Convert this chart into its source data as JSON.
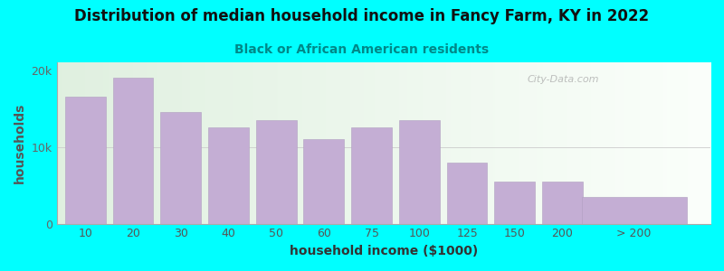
{
  "title": "Distribution of median household income in Fancy Farm, KY in 2022",
  "subtitle": "Black or African American residents",
  "xlabel": "household income ($1000)",
  "ylabel": "households",
  "background_outer": "#00FFFF",
  "bar_color": "#c4aed4",
  "bar_edge_color": "#b09fc0",
  "categories": [
    "10",
    "20",
    "30",
    "40",
    "50",
    "60",
    "75",
    "100",
    "125",
    "150",
    "200",
    "> 200"
  ],
  "values": [
    16500,
    19000,
    14500,
    12500,
    13500,
    11000,
    12500,
    13500,
    8000,
    5500,
    5500,
    3500
  ],
  "bar_widths": [
    1,
    1,
    1,
    1,
    1,
    1,
    1,
    1,
    1,
    1,
    1,
    2.5
  ],
  "ylim": [
    0,
    21000
  ],
  "yticks": [
    0,
    10000,
    20000
  ],
  "ytick_labels": [
    "0",
    "10k",
    "20k"
  ],
  "watermark": "City-Data.com",
  "title_fontsize": 12,
  "subtitle_fontsize": 10,
  "axis_label_fontsize": 10,
  "tick_fontsize": 9,
  "title_color": "#111111",
  "subtitle_color": "#008888",
  "ylabel_color": "#555555",
  "xlabel_color": "#333333"
}
